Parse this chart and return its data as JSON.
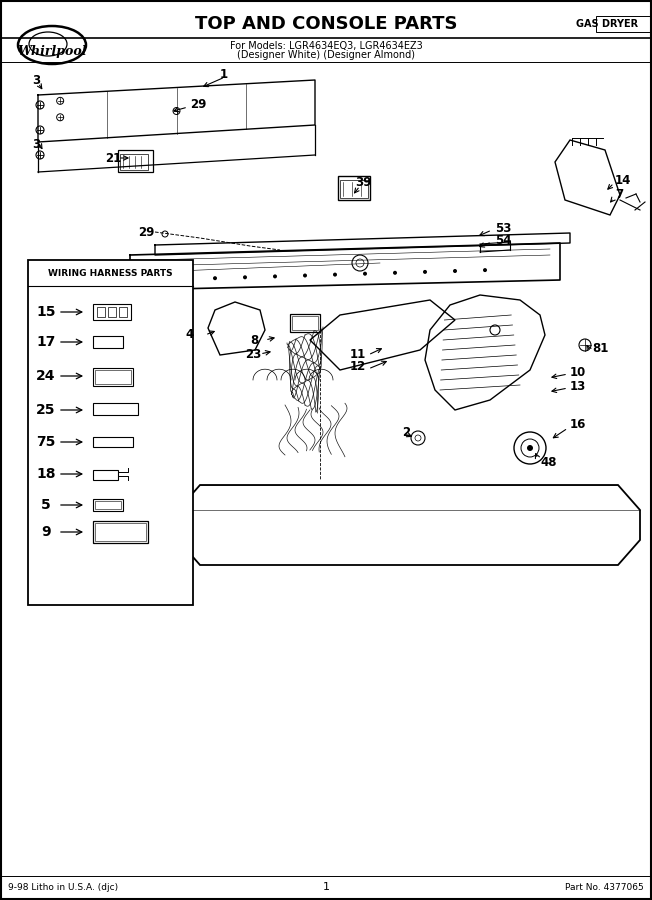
{
  "title": "TOP AND CONSOLE PARTS",
  "subtitle1": "For Models: LGR4634EQ3, LGR4634EZ3",
  "subtitle2": "(Designer White) (Designer Almond)",
  "type_label": "GAS DRYER",
  "footer_left": "9-98 Litho in U.S.A. (djc)",
  "footer_center": "1",
  "footer_right": "Part No. 4377065",
  "bg_color": "#ffffff",
  "wiring_box_title": "WIRING HARNESS PARTS",
  "wiring_parts": [
    "15",
    "17",
    "24",
    "25",
    "75",
    "18",
    "5",
    "9"
  ],
  "whirlpool_text": "Whirlpool"
}
